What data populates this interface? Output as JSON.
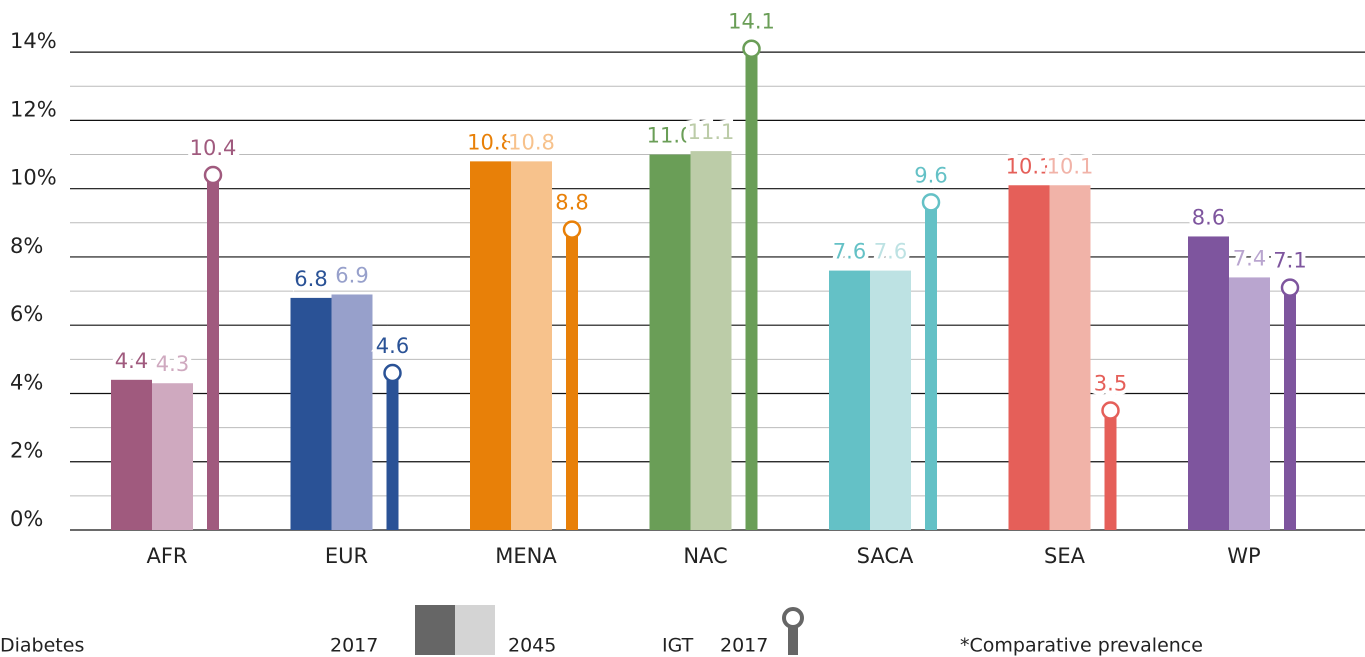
{
  "chart_data": {
    "type": "bar",
    "categories": [
      "AFR",
      "EUR",
      "MENA",
      "NAC",
      "SACA",
      "SEA",
      "WP"
    ],
    "series": [
      {
        "name": "2017",
        "style": "bar",
        "colors": [
          "#a05a7e",
          "#2a5296",
          "#e88008",
          "#6a9e57",
          "#64c1c6",
          "#e55f59",
          "#7e559e"
        ],
        "values": [
          4.4,
          6.8,
          10.8,
          11.0,
          7.6,
          10.1,
          8.6
        ],
        "value_labels": [
          "4.4",
          "6.8",
          "10.8",
          "11.0",
          "7.6",
          "10.1",
          "8.6"
        ]
      },
      {
        "name": "2045",
        "style": "bar",
        "colors": [
          "#cfa9bf",
          "#97a0cb",
          "#f7c28c",
          "#bccca8",
          "#bde2e3",
          "#f1b3a8",
          "#b9a5cf"
        ],
        "values": [
          4.3,
          6.9,
          10.8,
          11.1,
          7.6,
          10.1,
          7.4
        ],
        "value_labels": [
          "4.3",
          "6.9",
          "10.8",
          "11.1",
          "7.6",
          "10.1",
          "7.4"
        ]
      },
      {
        "name": "2017",
        "style": "lollipop",
        "colors": [
          "#a05a7e",
          "#2a5296",
          "#e88008",
          "#6a9e57",
          "#64c1c6",
          "#e55f59",
          "#7e559e"
        ],
        "values": [
          10.4,
          4.6,
          8.8,
          14.1,
          9.6,
          3.5,
          7.1
        ],
        "value_labels": [
          "10.4",
          "4.6",
          "8.8",
          "14.1",
          "9.6",
          "3.5",
          "7.1"
        ]
      }
    ],
    "legend_groups": [
      "Diabetes",
      "IGT"
    ],
    "legend_colors": [
      "#666666",
      "#d4d4d4"
    ],
    "footnote": "*Comparative prevalence",
    "ylim": [
      0,
      15
    ],
    "yticks": [
      {
        "value": 0,
        "label": "0%"
      },
      {
        "value": 2,
        "label": "2%"
      },
      {
        "value": 4,
        "label": "4%"
      },
      {
        "value": 6,
        "label": "6%"
      },
      {
        "value": 8,
        "label": "8%"
      },
      {
        "value": 10,
        "label": "10%"
      },
      {
        "value": 12,
        "label": "12%"
      },
      {
        "value": 14,
        "label": "14%"
      }
    ],
    "minor_grid": [
      1,
      3,
      5,
      7,
      9,
      11,
      13
    ],
    "grid": true
  }
}
